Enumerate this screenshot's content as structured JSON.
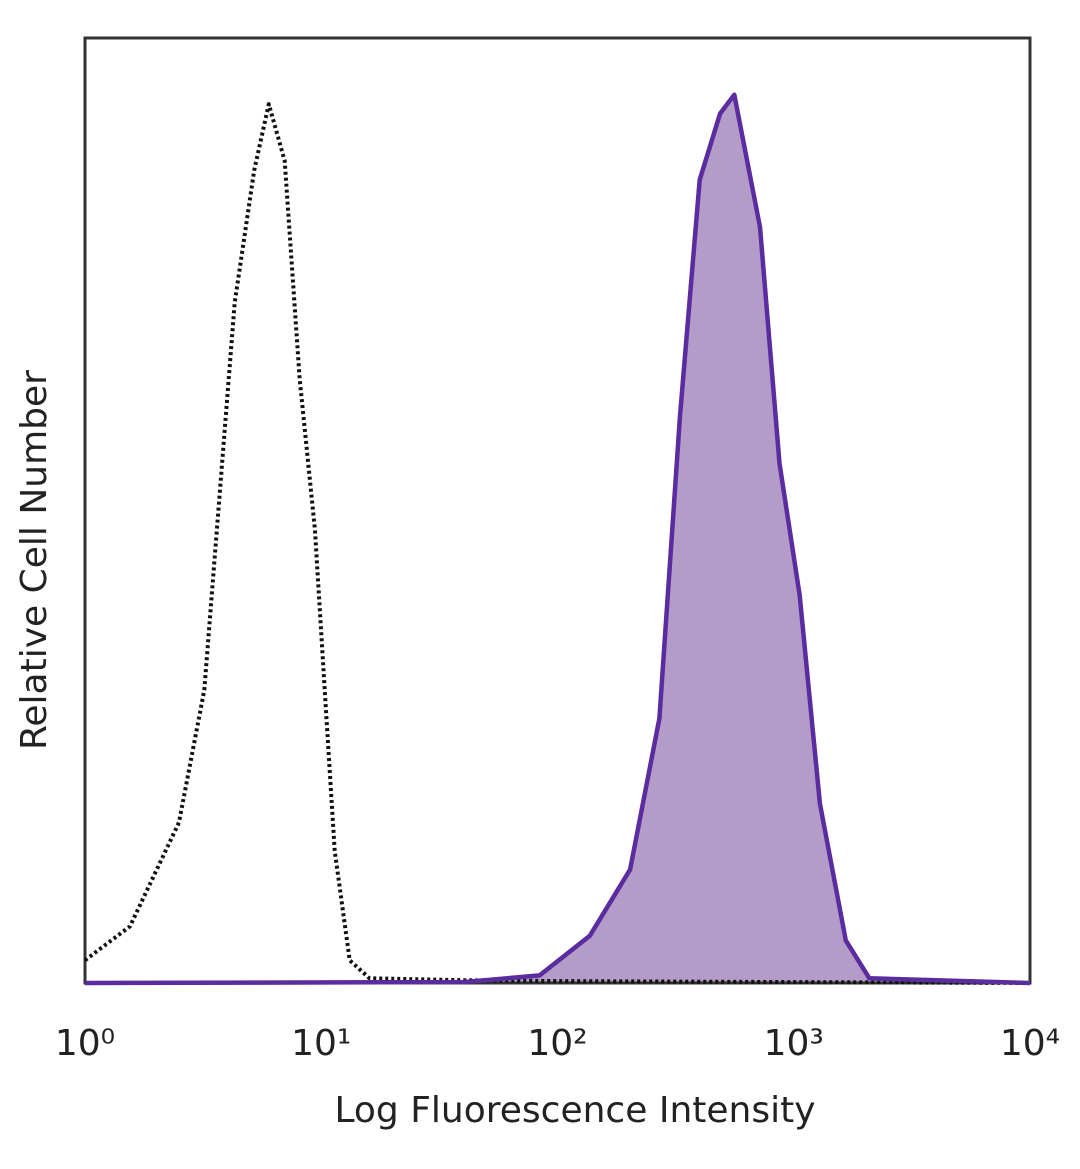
{
  "chart_data": {
    "type": "line",
    "xlabel": "Log Fluorescence Intensity",
    "ylabel": "Relative Cell Number",
    "xscale": "log",
    "xlim": [
      1,
      10000
    ],
    "ylim": [
      0,
      100
    ],
    "xticks": [
      {
        "value": 1,
        "label": "10⁰"
      },
      {
        "value": 10,
        "label": "10¹"
      },
      {
        "value": 100,
        "label": "10²"
      },
      {
        "value": 1000,
        "label": "10³"
      },
      {
        "value": 10000,
        "label": "10⁴"
      }
    ],
    "grid": false,
    "series": [
      {
        "color": "#111111",
        "line_style": "dotted",
        "x": [
          1,
          1.55,
          2.5,
          3.2,
          4.3,
          5.2,
          6.0,
          7.0,
          8.1,
          9.4,
          10.4,
          11.4,
          13.2,
          16,
          40,
          100,
          1000,
          10000
        ],
        "values": [
          2.4,
          6,
          17,
          31,
          72,
          86,
          93,
          87,
          64,
          48,
          30,
          14,
          2.4,
          0.5,
          0.3,
          0.2,
          0.1,
          0
        ]
      },
      {
        "color": "#5a2ca0",
        "fill": "#b49cc9",
        "line_style": "solid",
        "x": [
          1,
          40,
          84,
          137,
          203,
          270,
          330,
          400,
          488,
          560,
          720,
          870,
          1060,
          1290,
          1660,
          2090,
          10000
        ],
        "values": [
          0,
          0.1,
          0.8,
          5,
          12,
          28,
          60,
          85,
          92,
          94,
          80,
          55,
          41,
          19,
          4.5,
          0.5,
          0
        ]
      }
    ]
  }
}
